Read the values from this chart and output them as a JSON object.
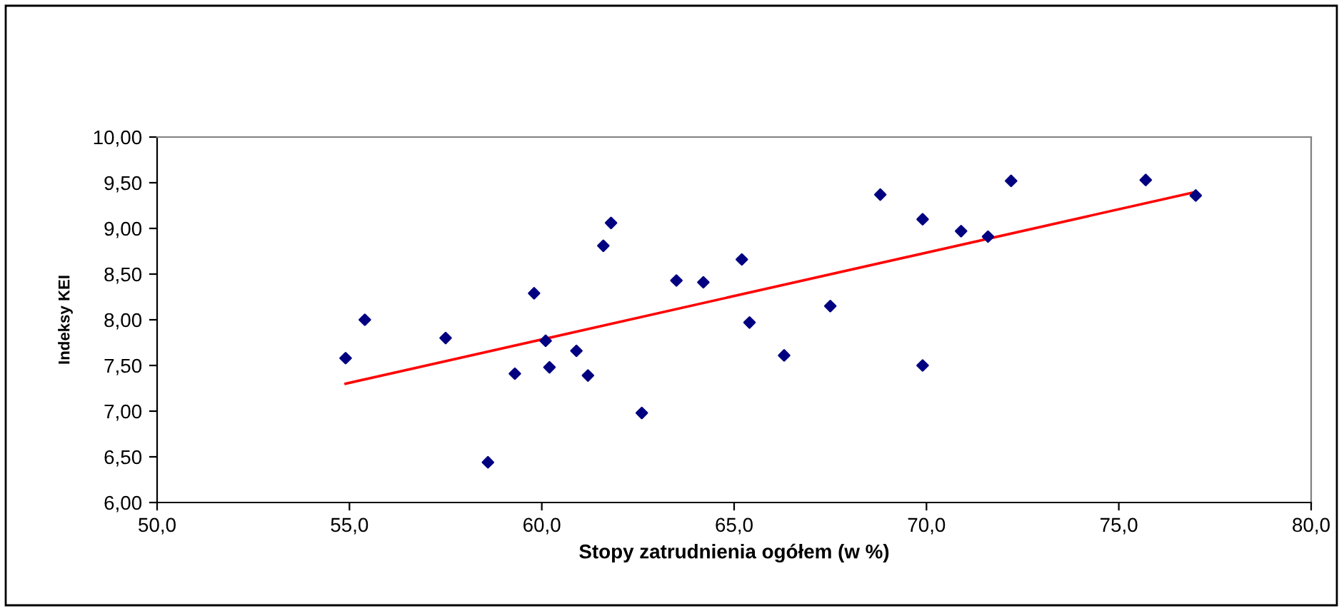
{
  "chart_data": {
    "type": "scatter",
    "xlabel": "Stopy zatrudnienia ogółem (w %)",
    "ylabel": "Indeksy KEI",
    "series": [
      {
        "color": "#000080",
        "marker": "diamond",
        "x": [
          54.9,
          55.4,
          57.5,
          58.6,
          59.3,
          59.8,
          60.1,
          60.2,
          60.9,
          61.2,
          61.6,
          61.8,
          62.6,
          63.5,
          64.2,
          65.2,
          65.4,
          66.3,
          67.5,
          68.8,
          69.9,
          69.9,
          70.9,
          71.6,
          72.2,
          75.7,
          77.0
        ],
        "values": [
          7.58,
          8.0,
          7.8,
          6.44,
          7.41,
          8.29,
          7.77,
          7.48,
          7.66,
          7.39,
          8.81,
          9.06,
          6.98,
          8.43,
          8.41,
          8.66,
          7.97,
          7.61,
          8.15,
          9.37,
          9.1,
          7.5,
          8.97,
          8.91,
          9.52,
          9.53,
          9.36
        ]
      },
      {
        "type": "line",
        "color": "#ff0000",
        "marker": "none",
        "line_style": "solid",
        "x": [
          54.9,
          77.0
        ],
        "values": [
          7.3,
          9.4
        ]
      }
    ],
    "xlim": [
      50,
      80
    ],
    "ylim": [
      6,
      10
    ],
    "xticks": [
      {
        "value": 50,
        "label": "50,0"
      },
      {
        "value": 55,
        "label": "55,0"
      },
      {
        "value": 60,
        "label": "60,0"
      },
      {
        "value": 65,
        "label": "65,0"
      },
      {
        "value": 70,
        "label": "70,0"
      },
      {
        "value": 75,
        "label": "75,0"
      },
      {
        "value": 80,
        "label": "80,0"
      }
    ],
    "yticks": [
      {
        "value": 6,
        "label": "6,00"
      },
      {
        "value": 6.5,
        "label": "6,50"
      },
      {
        "value": 7,
        "label": "7,00"
      },
      {
        "value": 7.5,
        "label": "7,50"
      },
      {
        "value": 8,
        "label": "8,00"
      },
      {
        "value": 8.5,
        "label": "8,50"
      },
      {
        "value": 9,
        "label": "9,00"
      },
      {
        "value": 9.5,
        "label": "9,50"
      },
      {
        "value": 10,
        "label": "10,00"
      }
    ],
    "grid": false,
    "legend": false
  }
}
